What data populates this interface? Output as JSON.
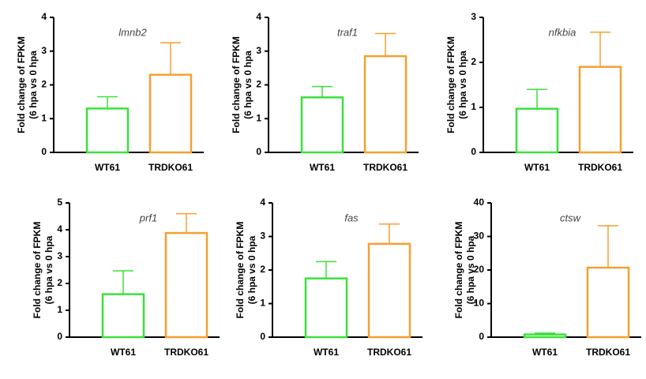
{
  "chart_data": [
    {
      "type": "bar",
      "title": "lmnb2",
      "ylabel": [
        "Fold change of FPKM",
        "(6 hpa vs 0 hpa"
      ],
      "categories": [
        "WT61",
        "TRDKO61"
      ],
      "values": [
        1.3,
        2.3
      ],
      "errors": [
        0.35,
        0.95
      ],
      "colors": [
        "#3ce03c",
        "#f5a030"
      ],
      "ylim": [
        0,
        4
      ],
      "yticks": [
        0,
        1,
        2,
        3,
        4
      ]
    },
    {
      "type": "bar",
      "title": "traf1",
      "ylabel": [
        "Fold change of FPKM",
        "(6 hpa vs 0 hpa"
      ],
      "categories": [
        "WT61",
        "TRDKO61"
      ],
      "values": [
        1.63,
        2.85
      ],
      "errors": [
        0.32,
        0.67
      ],
      "colors": [
        "#3ce03c",
        "#f5a030"
      ],
      "ylim": [
        0,
        4
      ],
      "yticks": [
        0,
        1,
        2,
        3,
        4
      ]
    },
    {
      "type": "bar",
      "title": "nfkbia",
      "ylabel": [
        "Fold change of FPKM",
        "(6 hpa vs 0 hpa"
      ],
      "categories": [
        "WT61",
        "TRDKO61"
      ],
      "values": [
        0.97,
        1.9
      ],
      "errors": [
        0.43,
        0.77
      ],
      "colors": [
        "#3ce03c",
        "#f5a030"
      ],
      "ylim": [
        0,
        3
      ],
      "yticks": [
        0,
        1,
        2,
        3
      ]
    },
    {
      "type": "bar",
      "title": "prf1",
      "ylabel": [
        "Fold change of FPKM",
        "(6 hpa vs 0 hpa"
      ],
      "categories": [
        "WT61",
        "TRDKO61"
      ],
      "values": [
        1.6,
        3.88
      ],
      "errors": [
        0.87,
        0.72
      ],
      "colors": [
        "#3ce03c",
        "#f5a030"
      ],
      "ylim": [
        0,
        5
      ],
      "yticks": [
        0,
        1,
        2,
        3,
        4,
        5
      ]
    },
    {
      "type": "bar",
      "title": "fas",
      "ylabel": [
        "Fold change of FPKM",
        "(6 hpa vs 0 hpa"
      ],
      "categories": [
        "WT61",
        "TRDKO61"
      ],
      "values": [
        1.75,
        2.78
      ],
      "errors": [
        0.5,
        0.59
      ],
      "colors": [
        "#3ce03c",
        "#f5a030"
      ],
      "ylim": [
        0,
        4
      ],
      "yticks": [
        0,
        1,
        2,
        3,
        4
      ]
    },
    {
      "type": "bar",
      "title": "ctsw",
      "ylabel": [
        "Fold change of FPKM",
        "(6 hpa vs 0 hpa"
      ],
      "categories": [
        "WT61",
        "TRDKO61"
      ],
      "values": [
        0.8,
        20.7
      ],
      "errors": [
        0.4,
        12.5
      ],
      "colors": [
        "#3ce03c",
        "#f5a030"
      ],
      "ylim": [
        0,
        40
      ],
      "yticks": [
        0,
        10,
        20,
        30,
        40
      ]
    }
  ]
}
